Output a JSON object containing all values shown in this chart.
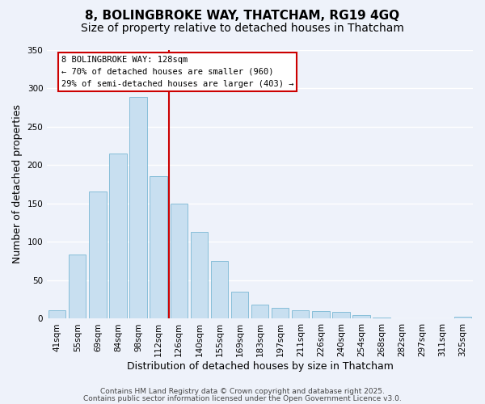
{
  "title": "8, BOLINGBROKE WAY, THATCHAM, RG19 4GQ",
  "subtitle": "Size of property relative to detached houses in Thatcham",
  "xlabel": "Distribution of detached houses by size in Thatcham",
  "ylabel": "Number of detached properties",
  "categories": [
    "41sqm",
    "55sqm",
    "69sqm",
    "84sqm",
    "98sqm",
    "112sqm",
    "126sqm",
    "140sqm",
    "155sqm",
    "169sqm",
    "183sqm",
    "197sqm",
    "211sqm",
    "226sqm",
    "240sqm",
    "254sqm",
    "268sqm",
    "282sqm",
    "297sqm",
    "311sqm",
    "325sqm"
  ],
  "values": [
    11,
    83,
    165,
    215,
    288,
    186,
    150,
    113,
    75,
    35,
    18,
    14,
    11,
    10,
    9,
    5,
    2,
    1,
    1,
    0,
    3
  ],
  "bar_color": "#c8dff0",
  "bar_edge_color": "#7ab8d4",
  "highlight_index": 5,
  "highlight_line_color": "#cc0000",
  "ylim": [
    0,
    350
  ],
  "yticks": [
    0,
    50,
    100,
    150,
    200,
    250,
    300,
    350
  ],
  "annotation_title": "8 BOLINGBROKE WAY: 128sqm",
  "annotation_line1": "← 70% of detached houses are smaller (960)",
  "annotation_line2": "29% of semi-detached houses are larger (403) →",
  "annotation_box_color": "#ffffff",
  "annotation_box_edge": "#cc0000",
  "footer1": "Contains HM Land Registry data © Crown copyright and database right 2025.",
  "footer2": "Contains public sector information licensed under the Open Government Licence v3.0.",
  "background_color": "#eef2fa",
  "grid_color": "#ffffff",
  "title_fontsize": 11,
  "subtitle_fontsize": 10,
  "axis_label_fontsize": 9,
  "tick_fontsize": 7.5,
  "footer_fontsize": 6.5
}
